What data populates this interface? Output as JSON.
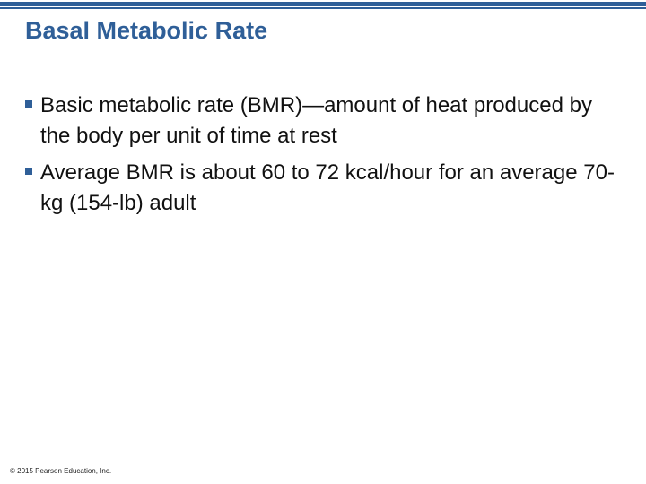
{
  "slide": {
    "title": "Basal Metabolic Rate",
    "bullets": [
      {
        "text": "Basic metabolic rate (BMR)—amount of heat produced by the body per unit of time at rest"
      },
      {
        "text": "Average BMR is about 60 to 72 kcal/hour for an average 70-kg (154-lb) adult"
      }
    ],
    "footer": "© 2015 Pearson Education, Inc."
  },
  "theme": {
    "accent_color": "#2f5f98",
    "text_color": "#111111",
    "bullet_icon": "square-bullet-icon"
  }
}
